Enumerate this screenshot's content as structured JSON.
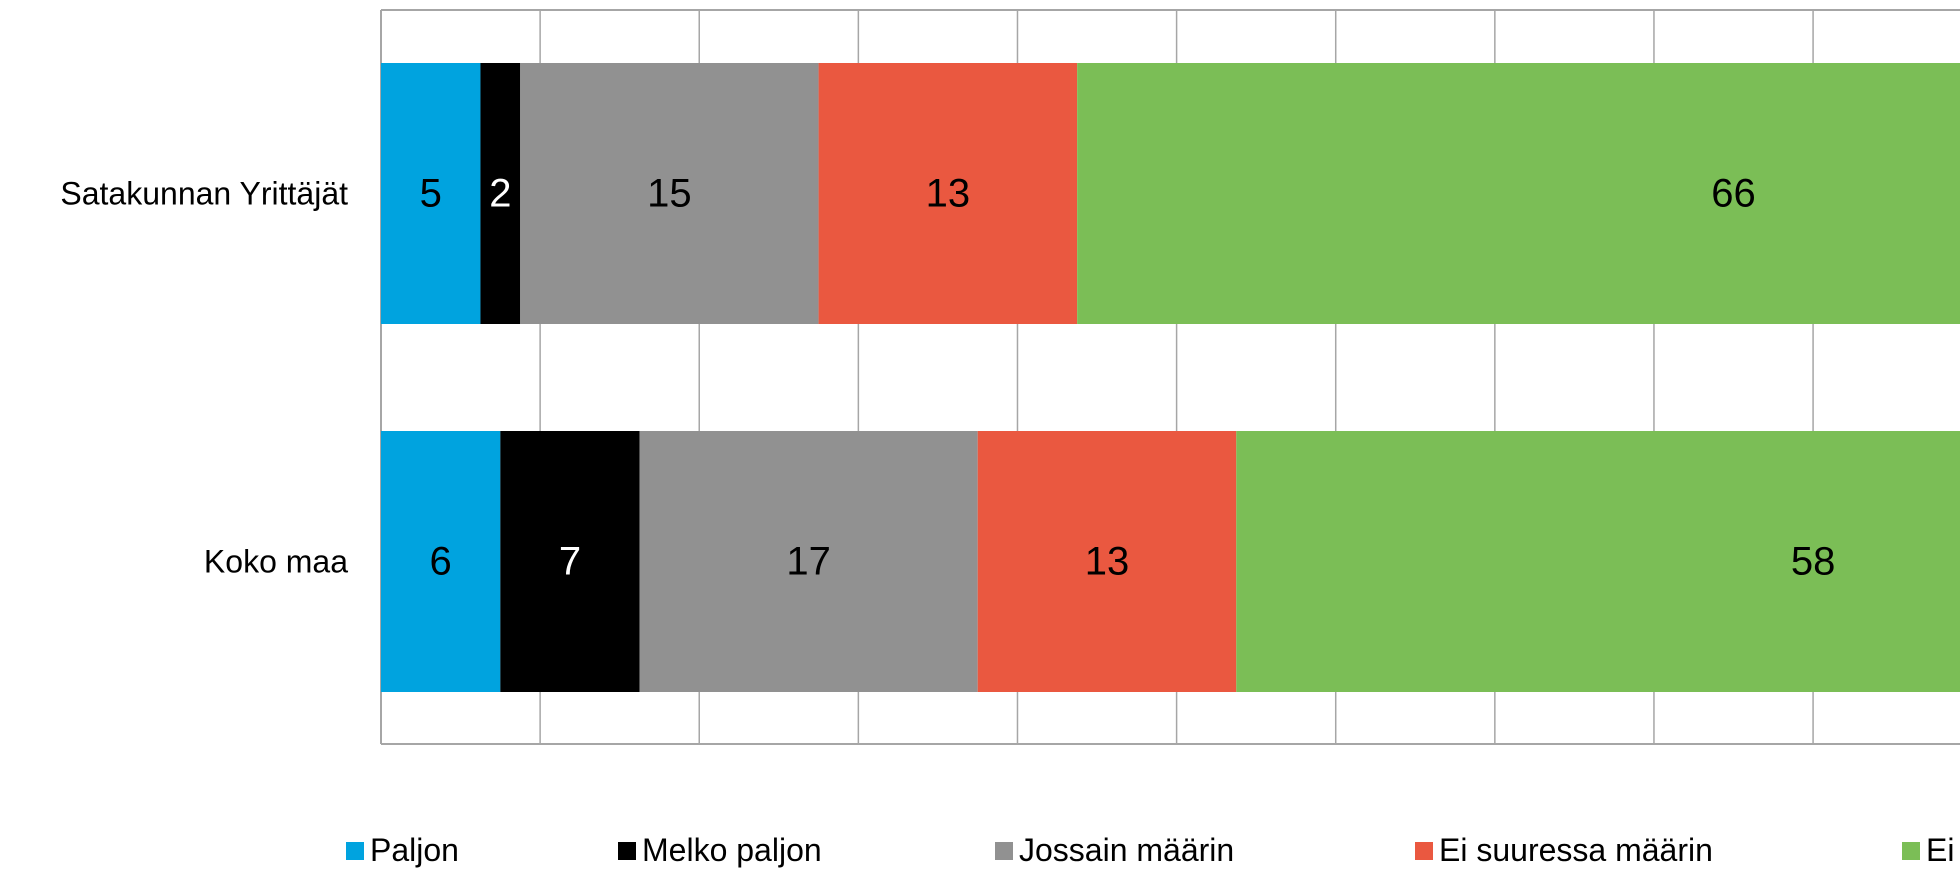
{
  "chart_data": {
    "type": "bar",
    "orientation": "horizontal",
    "stacked": true,
    "title": "",
    "xlabel": "",
    "ylabel": "",
    "categories": [
      "Satakunnan Yrittäjät",
      "Koko maa"
    ],
    "xlim": [
      0,
      100
    ],
    "grid": true,
    "legend_position": "bottom",
    "series": [
      {
        "name": "Paljon",
        "values": [
          5,
          6
        ],
        "color": "#00A3DF",
        "label_color": "#000000"
      },
      {
        "name": "Melko paljon",
        "values": [
          2,
          7
        ],
        "color": "#000000",
        "label_color": "#FFFFFF"
      },
      {
        "name": "Jossain määrin",
        "values": [
          15,
          17
        ],
        "color": "#919191",
        "label_color": "#000000"
      },
      {
        "name": "Ei suuressa määrin",
        "values": [
          13,
          13
        ],
        "color": "#EA5840",
        "label_color": "#000000"
      },
      {
        "name": "Ei",
        "values": [
          66,
          58
        ],
        "color": "#7BBE56",
        "label_color": "#000000"
      }
    ]
  }
}
